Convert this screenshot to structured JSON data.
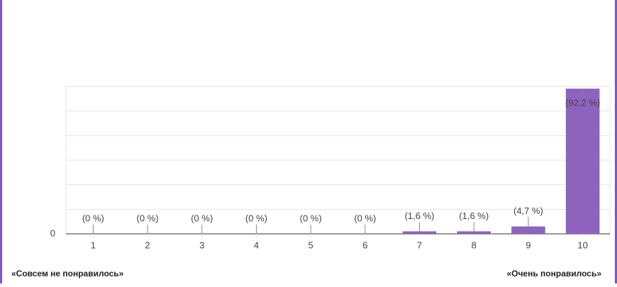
{
  "chart_data": {
    "type": "bar",
    "categories": [
      "1",
      "2",
      "3",
      "4",
      "5",
      "6",
      "7",
      "8",
      "9",
      "10"
    ],
    "values": [
      0,
      0,
      0,
      0,
      0,
      0,
      1.6,
      1.6,
      4.7,
      92.2
    ],
    "value_labels": [
      "(0 %)",
      "(0 %)",
      "(0 %)",
      "(0 %)",
      "(0 %)",
      "(0 %)",
      "(1,6 %)",
      "(1,6 %)",
      "(4,7 %)",
      "(92,2 %)"
    ],
    "color": "#8e63be",
    "ylim": [
      0,
      93.6
    ],
    "yticks": [
      0
    ],
    "grid": true,
    "left_label": "«Совсем не понравилось»",
    "right_label": "«Очень понравилось»"
  }
}
